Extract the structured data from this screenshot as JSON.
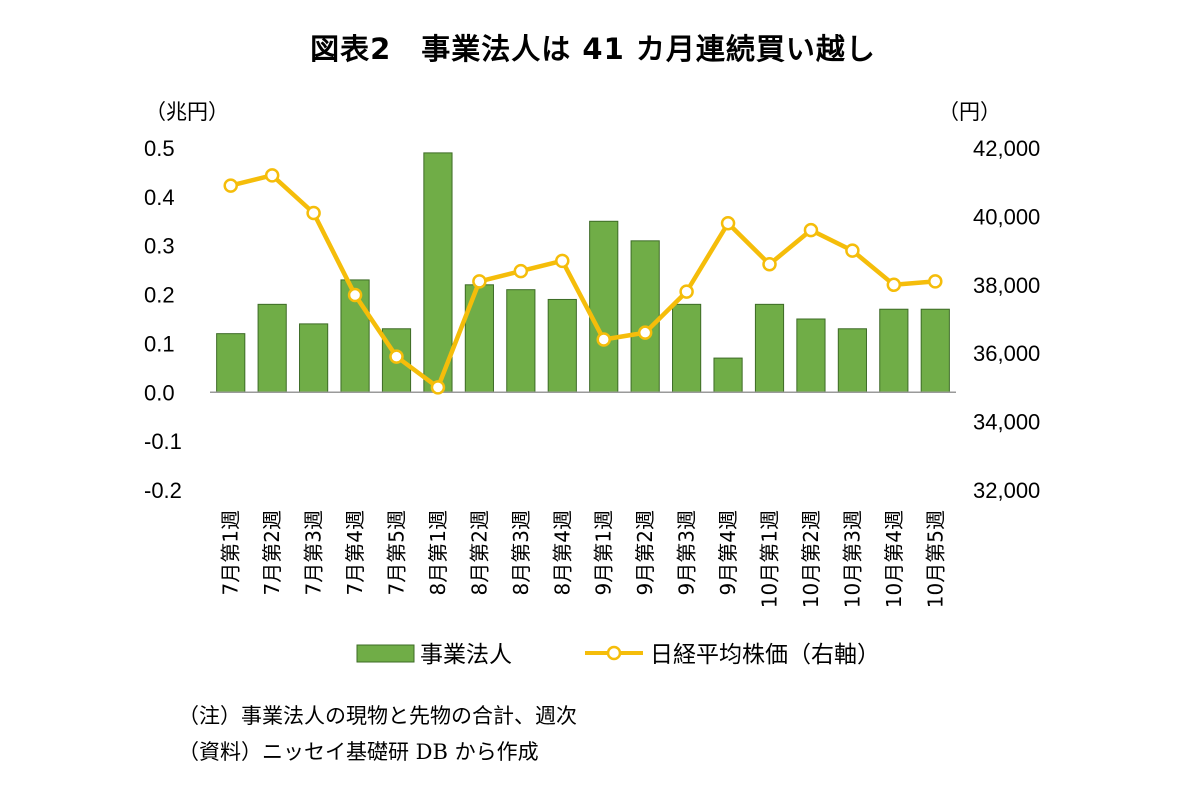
{
  "chart_data": {
    "type": "bar+line",
    "title": "図表2　事業法人は 41 カ月連続買い越し",
    "y_left_unit": "（兆円）",
    "y_right_unit": "（円）",
    "y_left_ticks": [
      "0.5",
      "0.4",
      "0.3",
      "0.2",
      "0.1",
      "0.0",
      "-0.1",
      "-0.2"
    ],
    "y_right_ticks": [
      "42,000",
      "40,000",
      "38,000",
      "36,000",
      "34,000",
      "32,000"
    ],
    "ylim_left": [
      -0.2,
      0.5
    ],
    "ylim_right": [
      32000,
      42000
    ],
    "categories": [
      "7月第1週",
      "7月第2週",
      "7月第3週",
      "7月第4週",
      "7月第5週",
      "8月第1週",
      "8月第2週",
      "8月第3週",
      "8月第4週",
      "9月第1週",
      "9月第2週",
      "9月第3週",
      "9月第4週",
      "10月第1週",
      "10月第2週",
      "10月第3週",
      "10月第4週",
      "10月第5週"
    ],
    "series": [
      {
        "name": "事業法人",
        "type": "bar",
        "axis": "left",
        "color": "#70AD47",
        "values": [
          0.12,
          0.18,
          0.14,
          0.23,
          0.13,
          0.49,
          0.22,
          0.21,
          0.19,
          0.35,
          0.31,
          0.18,
          0.07,
          0.18,
          0.15,
          0.13,
          0.17,
          0.17
        ]
      },
      {
        "name": "日経平均株価（右軸）",
        "type": "line",
        "axis": "right",
        "color": "#F5BD0A",
        "values": [
          40900,
          41200,
          40100,
          37700,
          35900,
          35000,
          38100,
          38400,
          38700,
          36400,
          36600,
          37800,
          39800,
          38600,
          39600,
          39000,
          38000,
          38100
        ]
      }
    ],
    "grid": false,
    "legend_position": "bottom"
  },
  "notes": [
    "（注）事業法人の現物と先物の合計、週次",
    "（資料）ニッセイ基礎研 DB から作成"
  ]
}
